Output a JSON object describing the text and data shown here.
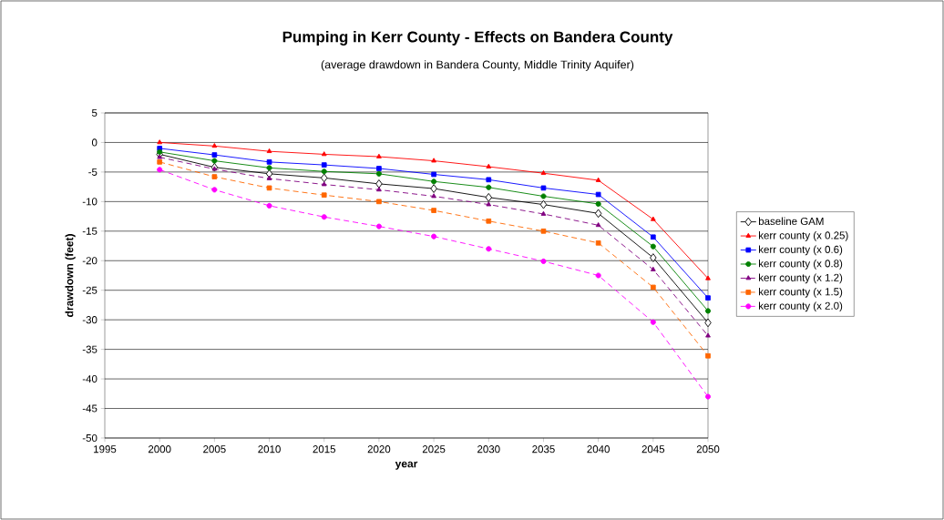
{
  "chart_data": {
    "type": "line",
    "title": "Pumping in Kerr County - Effects on Bandera County",
    "subtitle": "(average drawdown in Bandera County, Middle Trinity Aquifer)",
    "xlabel": "year",
    "ylabel": "drawdown (feet)",
    "x": [
      2000,
      2005,
      2010,
      2015,
      2020,
      2025,
      2030,
      2035,
      2040,
      2045,
      2050
    ],
    "xlim": [
      1995,
      2050
    ],
    "xticks": [
      1995,
      2000,
      2005,
      2010,
      2015,
      2020,
      2025,
      2030,
      2035,
      2040,
      2045,
      2050
    ],
    "ylim": [
      -50,
      5
    ],
    "yticks": [
      5,
      0,
      -5,
      -10,
      -15,
      -20,
      -25,
      -30,
      -35,
      -40,
      -45,
      -50
    ],
    "grid": "y",
    "legend": "right",
    "series": [
      {
        "name": "baseline GAM",
        "color": "#000000",
        "marker": "diamond",
        "line_style": "solid",
        "values": [
          -2,
          -4.2,
          -5.3,
          -6,
          -7,
          -7.8,
          -9.3,
          -10.5,
          -12,
          -19.5,
          -30.5
        ]
      },
      {
        "name": "kerr county (x 0.25)",
        "color": "#ff0000",
        "marker": "triangle",
        "line_style": "solid",
        "values": [
          0,
          -0.6,
          -1.5,
          -2,
          -2.4,
          -3.1,
          -4.1,
          -5.2,
          -6.4,
          -13,
          -23
        ]
      },
      {
        "name": "kerr county (x 0.6)",
        "color": "#0000ff",
        "marker": "square",
        "line_style": "solid",
        "values": [
          -1,
          -2.1,
          -3.3,
          -3.8,
          -4.4,
          -5.4,
          -6.3,
          -7.7,
          -8.8,
          -16,
          -26.3
        ]
      },
      {
        "name": "kerr county (x 0.8)",
        "color": "#008000",
        "marker": "circle",
        "line_style": "solid",
        "values": [
          -1.6,
          -3.1,
          -4.3,
          -4.9,
          -5.3,
          -6.6,
          -7.6,
          -9.1,
          -10.4,
          -17.6,
          -28.5
        ]
      },
      {
        "name": "kerr county (x 1.2)",
        "color": "#800080",
        "marker": "triangle",
        "line_style": "dashed",
        "values": [
          -2.5,
          -4.5,
          -6.1,
          -7.1,
          -8,
          -9.1,
          -10.5,
          -12.1,
          -14,
          -21.5,
          -32.7
        ]
      },
      {
        "name": "kerr county (x 1.5)",
        "color": "#ff6600",
        "marker": "square",
        "line_style": "dashed",
        "values": [
          -3.3,
          -5.8,
          -7.7,
          -8.9,
          -10,
          -11.5,
          -13.3,
          -15,
          -17,
          -24.5,
          -36.1
        ]
      },
      {
        "name": "kerr county (x 2.0)",
        "color": "#ff00ff",
        "marker": "circle",
        "line_style": "dashed",
        "values": [
          -4.6,
          -8,
          -10.7,
          -12.6,
          -14.2,
          -15.9,
          -18,
          -20.1,
          -22.5,
          -30.4,
          -43
        ]
      }
    ]
  }
}
